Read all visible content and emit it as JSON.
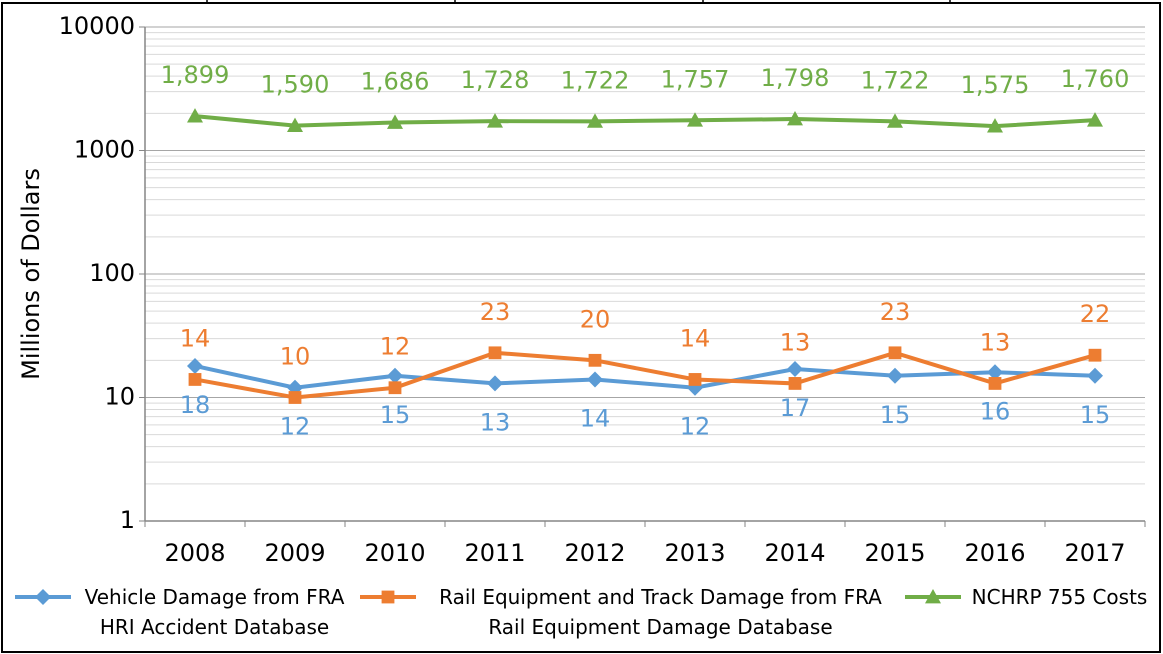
{
  "chart_data": {
    "type": "line",
    "y_label": "Millions of Dollars",
    "categories": [
      "2008",
      "2009",
      "2010",
      "2011",
      "2012",
      "2013",
      "2014",
      "2015",
      "2016",
      "2017"
    ],
    "series": [
      {
        "name": "Vehicle Damage from FRA HRI Accident Database",
        "color": "#5b9bd5",
        "marker": "diamond",
        "label_position": "below",
        "values": [
          18,
          12,
          15,
          13,
          14,
          12,
          17,
          15,
          16,
          15
        ]
      },
      {
        "name": "Rail Equipment and Track Damage from FRA Rail Equipment Damage Database",
        "color": "#ed7d31",
        "marker": "square",
        "label_position": "above",
        "values": [
          14,
          10,
          12,
          23,
          20,
          14,
          13,
          23,
          13,
          22
        ]
      },
      {
        "name": "NCHRP 755 Costs",
        "color": "#70ad47",
        "marker": "triangle",
        "label_position": "above",
        "values": [
          1899,
          1590,
          1686,
          1728,
          1722,
          1757,
          1798,
          1722,
          1575,
          1760
        ],
        "value_labels": [
          "1,899",
          "1,590",
          "1,686",
          "1,728",
          "1,722",
          "1,757",
          "1,798",
          "1,722",
          "1,575",
          "1,760"
        ]
      }
    ],
    "ylim": [
      1,
      10000
    ],
    "yticks": [
      1,
      10,
      100,
      1000,
      10000
    ],
    "log_scale": true,
    "grid": true,
    "minor_grid": true,
    "legend": "bottom"
  }
}
